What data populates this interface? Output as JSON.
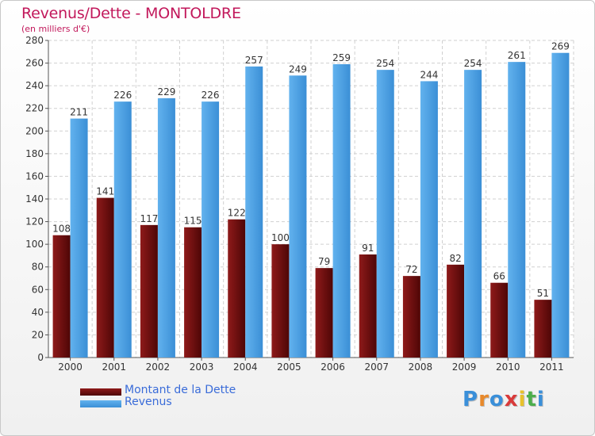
{
  "header": {
    "title": "Revenus/Dette - MONTOLDRE",
    "subtitle": "(en milliers d'€)"
  },
  "logo": {
    "text": "Proxiti",
    "letters": [
      {
        "ch": "P",
        "color": "#3a8fd9"
      },
      {
        "ch": "r",
        "color": "#e8892b"
      },
      {
        "ch": "o",
        "color": "#3a8fd9"
      },
      {
        "ch": "x",
        "color": "#d93a3a"
      },
      {
        "ch": "i",
        "color": "#e8c22b"
      },
      {
        "ch": "t",
        "color": "#4cae4c"
      },
      {
        "ch": "i",
        "color": "#3a8fd9"
      }
    ]
  },
  "chart_data": {
    "type": "bar",
    "title": "Revenus/Dette - MONTOLDRE",
    "subtitle": "(en milliers d'€)",
    "xlabel": "",
    "ylabel": "",
    "ylim": [
      0,
      280
    ],
    "yticks": [
      0,
      20,
      40,
      60,
      80,
      100,
      120,
      140,
      160,
      180,
      200,
      220,
      240,
      260,
      280
    ],
    "grid": true,
    "legend_position": "bottom-left",
    "categories": [
      "2000",
      "2001",
      "2002",
      "2003",
      "2004",
      "2005",
      "2006",
      "2007",
      "2008",
      "2009",
      "2010",
      "2011"
    ],
    "series": [
      {
        "name": "Montant de la Dette",
        "color": "#7a0f0f",
        "values": [
          108,
          141,
          117,
          115,
          122,
          100,
          79,
          91,
          72,
          82,
          66,
          51
        ]
      },
      {
        "name": "Revenus",
        "color": "#4da3e6",
        "values": [
          211,
          226,
          229,
          226,
          257,
          249,
          259,
          254,
          244,
          254,
          261,
          269
        ]
      }
    ]
  }
}
